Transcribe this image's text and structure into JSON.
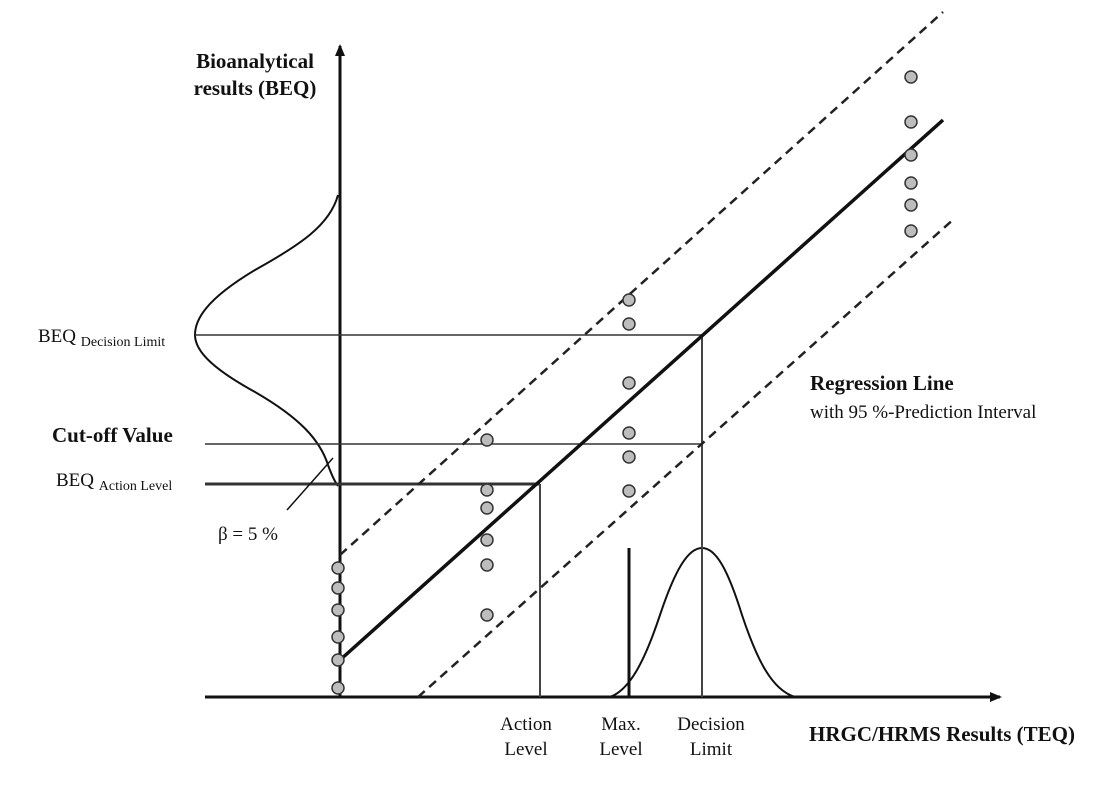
{
  "y_axis_title": [
    "Bioanalytical",
    "results (BEQ)"
  ],
  "x_axis_title": "HRGC/HRMS Results (TEQ)",
  "beq_decision_limit": {
    "main": "BEQ",
    "sub": "Decision Limit"
  },
  "cut_off_value": "Cut-off Value",
  "beq_action_level": {
    "main": "BEQ",
    "sub": "Action Level"
  },
  "beta_label": "β = 5 %",
  "regression_title": "Regression Line",
  "regression_subtitle": "with 95 %-Prediction Interval",
  "x_markers": {
    "action_level": [
      "Action",
      "Level"
    ],
    "max_level": [
      "Max.",
      "Level"
    ],
    "decision_limit": [
      "Decision",
      "Limit"
    ]
  },
  "colors": {
    "ink": "#111111",
    "grid_line": "#333333",
    "marker_fill": "#bdbdbd"
  }
}
